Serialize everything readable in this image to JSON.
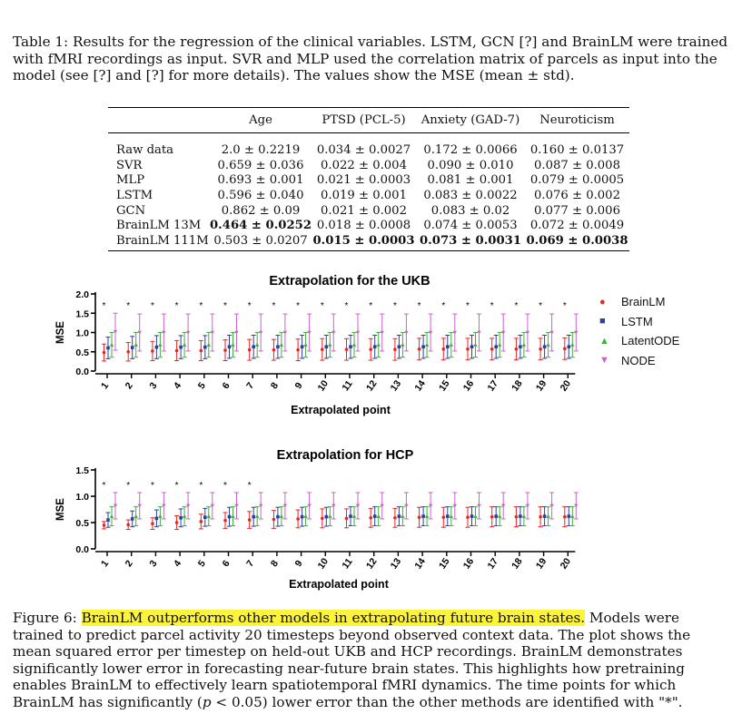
{
  "table": {
    "caption": "Table 1: Results for the regression of the clinical variables. LSTM, GCN [?] and BrainLM were trained with fMRI recordings as input. SVR and MLP used the correlation matrix of parcels as input into the model (see [?] and [?] for more details). The values show the MSE (mean ± std).",
    "columns": [
      "",
      "Age",
      "PTSD (PCL-5)",
      "Anxiety (GAD-7)",
      "Neuroticism"
    ],
    "rows": [
      {
        "label": "Raw data",
        "values": [
          "2.0 ± 0.2219",
          "0.034 ± 0.0027",
          "0.172 ± 0.0066",
          "0.160 ± 0.0137"
        ],
        "bold": [
          false,
          false,
          false,
          false
        ]
      },
      {
        "label": "SVR",
        "values": [
          "0.659 ± 0.036",
          "0.022 ± 0.004",
          "0.090 ± 0.010",
          "0.087 ± 0.008"
        ],
        "bold": [
          false,
          false,
          false,
          false
        ]
      },
      {
        "label": "MLP",
        "values": [
          "0.693 ± 0.001",
          "0.021 ± 0.0003",
          "0.081 ± 0.001",
          "0.079 ± 0.0005"
        ],
        "bold": [
          false,
          false,
          false,
          false
        ]
      },
      {
        "label": "LSTM",
        "values": [
          "0.596 ± 0.040",
          "0.019 ± 0.001",
          "0.083 ± 0.0022",
          "0.076 ± 0.002"
        ],
        "bold": [
          false,
          false,
          false,
          false
        ]
      },
      {
        "label": "GCN",
        "values": [
          "0.862 ± 0.09",
          "0.021 ± 0.002",
          "0.083 ± 0.02",
          "0.077 ± 0.006"
        ],
        "bold": [
          false,
          false,
          false,
          false
        ]
      },
      {
        "label": "BrainLM 13M",
        "values": [
          "0.464 ± 0.0252",
          "0.018 ± 0.0008",
          "0.074 ± 0.0053",
          "0.072 ± 0.0049"
        ],
        "bold": [
          true,
          false,
          false,
          false
        ]
      },
      {
        "label": "BrainLM 111M",
        "values": [
          "0.503 ± 0.0207",
          "0.015 ± 0.0003",
          "0.073 ± 0.0031",
          "0.069 ± 0.0038"
        ],
        "bold": [
          false,
          true,
          true,
          true
        ]
      }
    ]
  },
  "chart_data": [
    {
      "type": "scatter",
      "title": "Extrapolation for the UKB",
      "xlabel": "Extrapolated point",
      "ylabel": "MSE",
      "x": [
        1,
        2,
        3,
        4,
        5,
        6,
        7,
        8,
        9,
        10,
        11,
        12,
        13,
        14,
        15,
        16,
        17,
        18,
        19,
        20
      ],
      "yticks": [
        "0.0",
        "0.5",
        "1.0",
        "1.5",
        "2.0"
      ],
      "ylim": [
        0,
        2.0
      ],
      "significance_marker": "*",
      "series": [
        {
          "name": "BrainLM",
          "mean": [
            0.48,
            0.5,
            0.52,
            0.53,
            0.53,
            0.54,
            0.55,
            0.55,
            0.55,
            0.56,
            0.56,
            0.56,
            0.56,
            0.57,
            0.57,
            0.57,
            0.57,
            0.57,
            0.57,
            0.58
          ],
          "err": [
            0.22,
            0.24,
            0.25,
            0.26,
            0.26,
            0.27,
            0.27,
            0.27,
            0.28,
            0.28,
            0.28,
            0.28,
            0.28,
            0.28,
            0.28,
            0.28,
            0.28,
            0.28,
            0.28,
            0.28
          ]
        },
        {
          "name": "LSTM",
          "mean": [
            0.6,
            0.61,
            0.62,
            0.62,
            0.62,
            0.63,
            0.63,
            0.63,
            0.63,
            0.63,
            0.63,
            0.63,
            0.63,
            0.63,
            0.63,
            0.63,
            0.63,
            0.63,
            0.63,
            0.63
          ],
          "err": [
            0.28,
            0.29,
            0.3,
            0.3,
            0.3,
            0.3,
            0.3,
            0.3,
            0.3,
            0.3,
            0.3,
            0.3,
            0.3,
            0.3,
            0.3,
            0.3,
            0.3,
            0.3,
            0.3,
            0.3
          ]
        },
        {
          "name": "LatentODE",
          "mean": [
            0.68,
            0.68,
            0.68,
            0.68,
            0.68,
            0.68,
            0.68,
            0.68,
            0.68,
            0.68,
            0.68,
            0.68,
            0.68,
            0.68,
            0.68,
            0.68,
            0.68,
            0.68,
            0.68,
            0.68
          ],
          "err": [
            0.32,
            0.32,
            0.32,
            0.32,
            0.32,
            0.32,
            0.32,
            0.32,
            0.32,
            0.32,
            0.32,
            0.32,
            0.32,
            0.32,
            0.32,
            0.32,
            0.32,
            0.32,
            0.32,
            0.32
          ]
        },
        {
          "name": "NODE",
          "mean": [
            1.02,
            1.0,
            1.0,
            1.0,
            1.0,
            1.0,
            1.0,
            1.0,
            1.0,
            1.0,
            1.0,
            1.0,
            1.0,
            1.0,
            1.0,
            1.0,
            1.0,
            1.0,
            1.0,
            1.0
          ],
          "err": [
            0.48,
            0.48,
            0.48,
            0.48,
            0.48,
            0.48,
            0.48,
            0.48,
            0.48,
            0.48,
            0.48,
            0.48,
            0.48,
            0.48,
            0.48,
            0.48,
            0.48,
            0.48,
            0.48,
            0.48
          ]
        }
      ],
      "significant_points": [
        1,
        2,
        3,
        4,
        5,
        6,
        7,
        8,
        9,
        10,
        11,
        12,
        13,
        14,
        15,
        16,
        17,
        18,
        19,
        20
      ]
    },
    {
      "type": "scatter",
      "title": "Extrapolation for HCP",
      "xlabel": "Extrapolated point",
      "ylabel": "MSE",
      "x": [
        1,
        2,
        3,
        4,
        5,
        6,
        7,
        8,
        9,
        10,
        11,
        12,
        13,
        14,
        15,
        16,
        17,
        18,
        19,
        20
      ],
      "yticks": [
        "0.0",
        "0.5",
        "1.0",
        "1.5"
      ],
      "ylim": [
        0,
        1.5
      ],
      "significance_marker": "*",
      "series": [
        {
          "name": "BrainLM",
          "mean": [
            0.45,
            0.46,
            0.48,
            0.5,
            0.52,
            0.54,
            0.55,
            0.56,
            0.57,
            0.58,
            0.58,
            0.59,
            0.59,
            0.6,
            0.6,
            0.6,
            0.61,
            0.61,
            0.61,
            0.61
          ],
          "err": [
            0.07,
            0.09,
            0.11,
            0.13,
            0.14,
            0.15,
            0.16,
            0.17,
            0.17,
            0.18,
            0.18,
            0.18,
            0.18,
            0.19,
            0.19,
            0.19,
            0.19,
            0.19,
            0.19,
            0.19
          ]
        },
        {
          "name": "LSTM",
          "mean": [
            0.55,
            0.57,
            0.58,
            0.59,
            0.6,
            0.61,
            0.61,
            0.61,
            0.61,
            0.61,
            0.62,
            0.62,
            0.62,
            0.62,
            0.62,
            0.62,
            0.62,
            0.62,
            0.62,
            0.62
          ],
          "err": [
            0.14,
            0.15,
            0.16,
            0.17,
            0.17,
            0.18,
            0.18,
            0.18,
            0.18,
            0.18,
            0.18,
            0.18,
            0.18,
            0.18,
            0.18,
            0.18,
            0.18,
            0.18,
            0.18,
            0.18
          ]
        },
        {
          "name": "LatentODE",
          "mean": [
            0.62,
            0.62,
            0.62,
            0.62,
            0.62,
            0.62,
            0.62,
            0.62,
            0.62,
            0.62,
            0.62,
            0.62,
            0.62,
            0.62,
            0.62,
            0.62,
            0.62,
            0.62,
            0.62,
            0.62
          ],
          "err": [
            0.18,
            0.18,
            0.18,
            0.18,
            0.18,
            0.18,
            0.18,
            0.18,
            0.18,
            0.18,
            0.18,
            0.18,
            0.18,
            0.18,
            0.18,
            0.18,
            0.18,
            0.18,
            0.18,
            0.18
          ]
        },
        {
          "name": "NODE",
          "mean": [
            0.82,
            0.82,
            0.82,
            0.82,
            0.82,
            0.82,
            0.82,
            0.82,
            0.82,
            0.82,
            0.82,
            0.82,
            0.82,
            0.82,
            0.82,
            0.82,
            0.82,
            0.82,
            0.82,
            0.82
          ],
          "err": [
            0.25,
            0.25,
            0.25,
            0.25,
            0.25,
            0.25,
            0.25,
            0.25,
            0.25,
            0.25,
            0.25,
            0.25,
            0.25,
            0.25,
            0.25,
            0.25,
            0.25,
            0.25,
            0.25,
            0.25
          ]
        }
      ],
      "significant_points": [
        1,
        2,
        3,
        4,
        5,
        6,
        7
      ]
    }
  ],
  "legend": {
    "placement": "right",
    "items": [
      {
        "name": "BrainLM",
        "marker": "●",
        "color": "#e8251f"
      },
      {
        "name": "LSTM",
        "marker": "■",
        "color": "#2b3fa3"
      },
      {
        "name": "LatentODE",
        "marker": "▲",
        "color": "#3fb03a"
      },
      {
        "name": "NODE",
        "marker": "▼",
        "color": "#c864c8"
      }
    ]
  },
  "figure_caption": {
    "label": "Figure 6: ",
    "highlighted": "BrainLM outperforms other models in extrapolating future brain states.",
    "before_p": " Models were trained to predict parcel activity 20 timesteps beyond observed context data. The plot shows the mean squared error per timestep on held-out UKB and HCP recordings. BrainLM demonstrates significantly lower error in forecasting near-future brain states. This highlights how pretraining enables BrainLM to effectively learn spatiotemporal fMRI dynamics. The time points for which BrainLM has significantly (",
    "p_var": "p",
    "after_p": " < 0.05) lower error than the other methods are identified with \"*\"."
  },
  "colors": {
    "BrainLM": "#e8251f",
    "LSTM": "#2b3fa3",
    "LatentODE": "#3fb03a",
    "NODE": "#c864c8",
    "highlight": "#fdf33a"
  }
}
